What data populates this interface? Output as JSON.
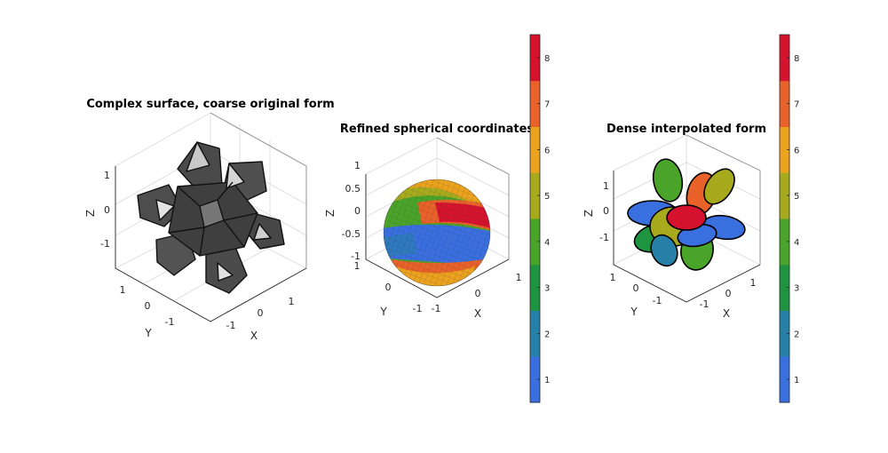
{
  "chart_data": [
    {
      "type": "surface3d",
      "title": "Complex surface, coarse original form",
      "xlabel": "X",
      "ylabel": "Y",
      "zlabel": "Z",
      "xticks": [
        "-1",
        "0",
        "1"
      ],
      "yticks": [
        "-1",
        "0",
        "1"
      ],
      "zticks": [
        "-1",
        "0",
        "1"
      ],
      "xlim": [
        -1.6,
        1.6
      ],
      "ylim": [
        -1.6,
        1.6
      ],
      "zlim": [
        -1.6,
        1.6
      ],
      "face_color": "#555555",
      "mesh": "coarse",
      "grid": true
    },
    {
      "type": "surface3d",
      "title": "Refined spherical coordinates",
      "xlabel": "X",
      "ylabel": "Y",
      "zlabel": "Z",
      "xticks": [
        "-1",
        "0",
        "1"
      ],
      "yticks": [
        "-1",
        "0",
        "1"
      ],
      "zticks": [
        "-1",
        "-0.5",
        "0",
        "0.5",
        "1"
      ],
      "xlim": [
        -1,
        1
      ],
      "ylim": [
        -1,
        1
      ],
      "zlim": [
        -1,
        1
      ],
      "mesh": "refined",
      "grid": true,
      "colorbar": {
        "ticks": [
          "1",
          "2",
          "3",
          "4",
          "5",
          "6",
          "7",
          "8"
        ],
        "range": [
          0.5,
          8.5
        ]
      }
    },
    {
      "type": "surface3d",
      "title": "Dense interpolated form",
      "xlabel": "X",
      "ylabel": "Y",
      "zlabel": "Z",
      "xticks": [
        "-1",
        "0",
        "1"
      ],
      "yticks": [
        "-1",
        "0",
        "1"
      ],
      "zticks": [
        "-1",
        "0",
        "1"
      ],
      "xlim": [
        -1.6,
        1.6
      ],
      "ylim": [
        -1.6,
        1.6
      ],
      "zlim": [
        -1.6,
        1.6
      ],
      "mesh": "dense",
      "grid": true,
      "colorbar": {
        "ticks": [
          "1",
          "2",
          "3",
          "4",
          "5",
          "6",
          "7",
          "8"
        ],
        "range": [
          0.5,
          8.5
        ]
      }
    }
  ],
  "colormap": [
    "#3A6FE0",
    "#2680A8",
    "#1E9440",
    "#4BA42A",
    "#A8AA1E",
    "#EBA21E",
    "#E8622A",
    "#D6132E"
  ]
}
